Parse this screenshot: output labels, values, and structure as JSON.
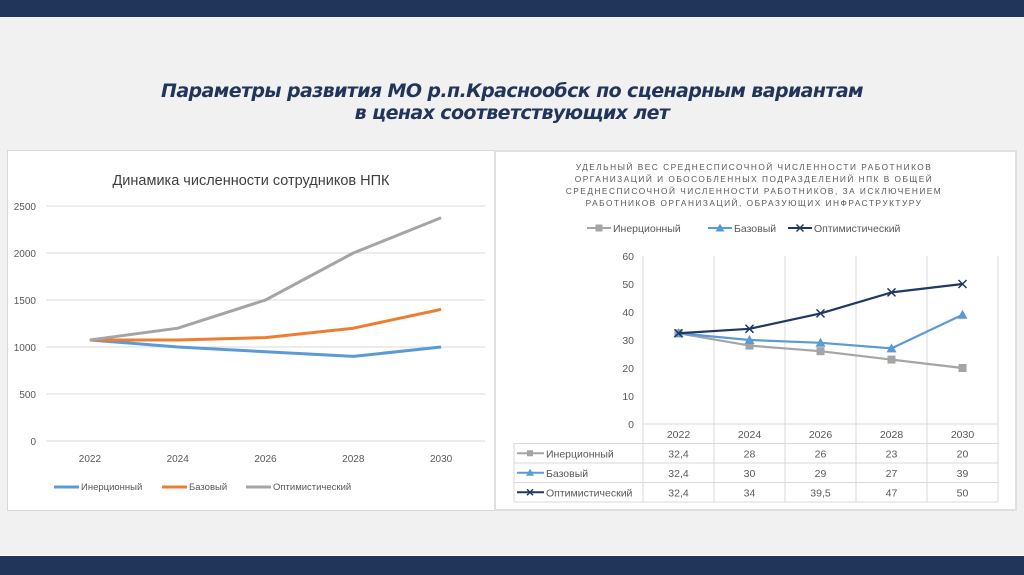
{
  "slide": {
    "title_line1": "Параметры развития МО р.п.Краснообск по сценарным вариантам",
    "title_line2": "в ценах соответствующих лет"
  },
  "colors": {
    "bar": "#213459",
    "title": "#213459",
    "left_series": [
      "#5b9bd5",
      "#ed7d31",
      "#a5a5a5"
    ],
    "right_series": [
      "#a5a5a5",
      "#5b9bd5",
      "#203864"
    ]
  },
  "chart_data": [
    {
      "type": "line",
      "title": "Динамика численности сотрудников НПК",
      "categories": [
        "2022",
        "2024",
        "2026",
        "2028",
        "2030"
      ],
      "yticks": [
        "0",
        "500",
        "1000",
        "1500",
        "2000",
        "2500"
      ],
      "ylim": [
        0,
        2500
      ],
      "grid": true,
      "legend_position": "bottom",
      "series": [
        {
          "name": "Инерционный",
          "values": [
            1075,
            1000,
            950,
            900,
            1000
          ]
        },
        {
          "name": "Базовый",
          "values": [
            1075,
            1075,
            1100,
            1200,
            1400
          ]
        },
        {
          "name": "Оптимистический",
          "values": [
            1075,
            1200,
            1500,
            2000,
            2375
          ]
        }
      ]
    },
    {
      "type": "line",
      "title_lines": [
        "УДЕЛЬНЫЙ ВЕС СРЕДНЕСПИСОЧНОЙ ЧИСЛЕННОСТИ РАБОТНИКОВ",
        "ОРГАНИЗАЦИЙ И ОБОСОБЛЕННЫХ ПОДРАЗДЕЛЕНИЙ НПК В ОБЩЕЙ",
        "СРЕДНЕСПИСОЧНОЙ ЧИСЛЕННОСТИ РАБОТНИКОВ, ЗА ИСКЛЮЧЕНИЕМ",
        "РАБОТНИКОВ ОРГАНИЗАЦИЙ, ОБРАЗУЮЩИХ ИНФРАСТРУКТУРУ"
      ],
      "categories": [
        "2022",
        "2024",
        "2026",
        "2028",
        "2030"
      ],
      "yticks": [
        "0",
        "10",
        "20",
        "30",
        "40",
        "50",
        "60"
      ],
      "ylim": [
        0,
        60
      ],
      "grid": true,
      "legend_position": "top",
      "has_data_table": true,
      "series": [
        {
          "name": "Инерционный",
          "marker": "square",
          "values": [
            32.4,
            28,
            26,
            23,
            20
          ],
          "labels": [
            "32,4",
            "28",
            "26",
            "23",
            "20"
          ]
        },
        {
          "name": "Базовый",
          "marker": "triangle",
          "values": [
            32.4,
            30,
            29,
            27,
            39
          ],
          "labels": [
            "32,4",
            "30",
            "29",
            "27",
            "39"
          ]
        },
        {
          "name": "Оптимистический",
          "marker": "x",
          "values": [
            32.4,
            34,
            39.5,
            47,
            50
          ],
          "labels": [
            "32,4",
            "34",
            "39,5",
            "47",
            "50"
          ]
        }
      ]
    }
  ]
}
